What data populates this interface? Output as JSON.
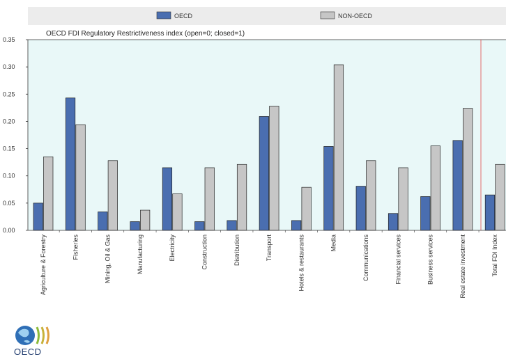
{
  "legend": {
    "oecd_label": "OECD",
    "non_oecd_label": "NON-OECD"
  },
  "logo": {
    "text": "OECD"
  },
  "colors": {
    "oecd": "#4a6eb0",
    "non_oecd": "#c6c6c6",
    "plot_background": "#e9f8f8",
    "separator_line": "#e04848"
  },
  "chart_data": {
    "type": "bar",
    "title": "OECD FDI Regulatory Restrictiveness index (open=0; closed=1)",
    "categories": [
      "Agriculture & Forestry",
      "Fisheries",
      "Mining, Oil & Gas",
      "Manufacturing",
      "Electricity",
      "Construction",
      "Distribution",
      "Transport",
      "Hotels & restaurants",
      "Media",
      "Communications",
      "Financial services",
      "Business services",
      "Real estate investment",
      "Total FDI Index"
    ],
    "series": [
      {
        "name": "OECD",
        "values": [
          0.05,
          0.243,
          0.034,
          0.016,
          0.115,
          0.016,
          0.018,
          0.209,
          0.018,
          0.154,
          0.081,
          0.031,
          0.062,
          0.165,
          0.065
        ]
      },
      {
        "name": "NON-OECD",
        "values": [
          0.135,
          0.194,
          0.128,
          0.037,
          0.067,
          0.115,
          0.121,
          0.228,
          0.079,
          0.304,
          0.128,
          0.115,
          0.155,
          0.224,
          0.121
        ]
      }
    ],
    "yticks": [
      "0.00",
      "0.05",
      "0.10",
      "0.15",
      "0.20",
      "0.25",
      "0.30",
      "0.35"
    ],
    "ylim": [
      0,
      0.35
    ],
    "xlabel": "",
    "ylabel": "",
    "grid": false,
    "legend_position": "top"
  }
}
